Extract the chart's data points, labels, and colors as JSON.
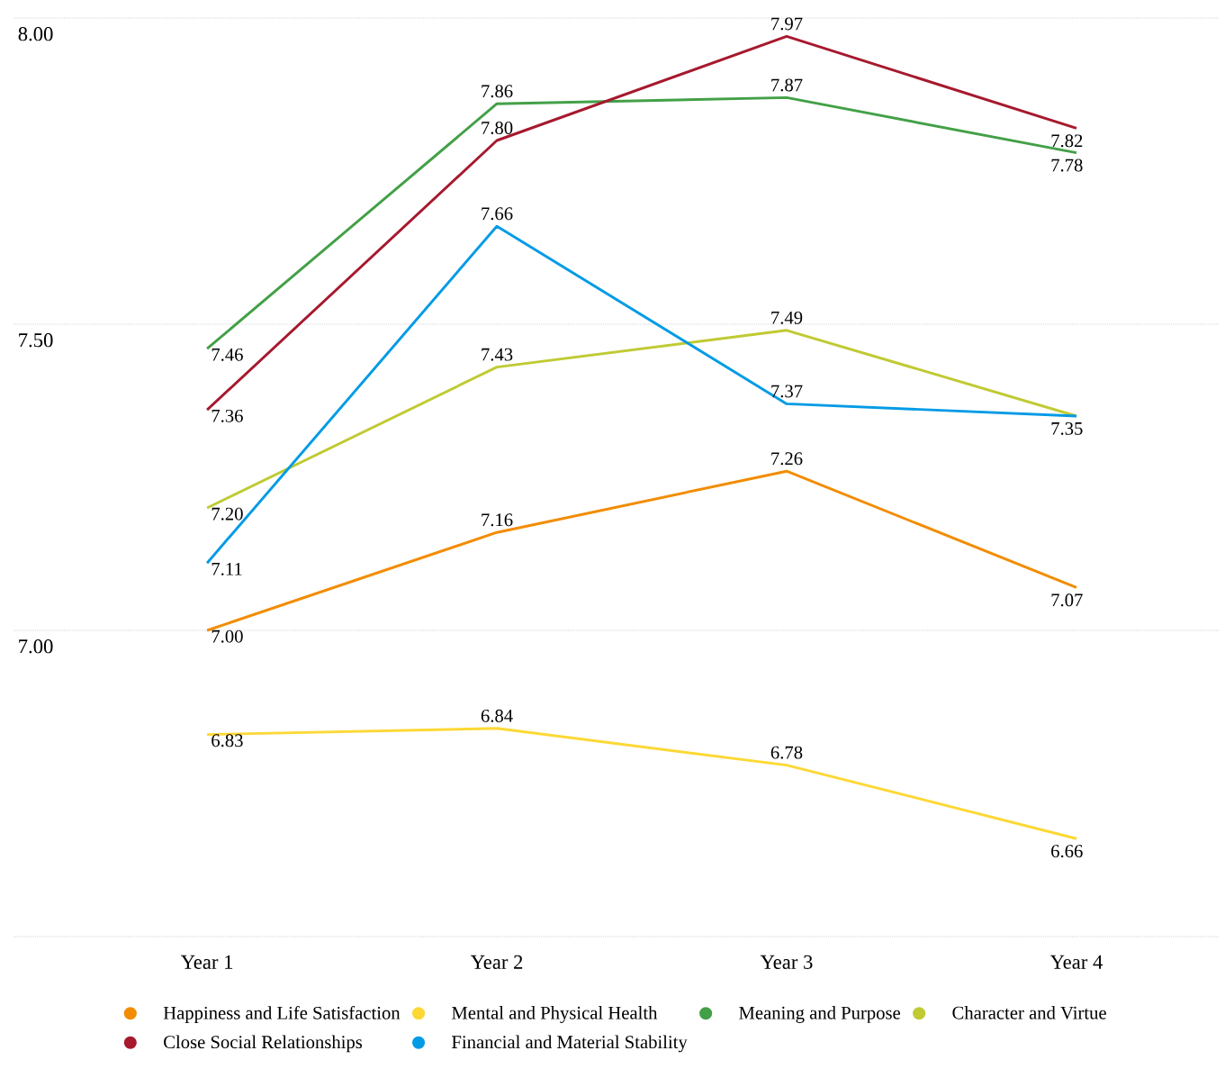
{
  "chart_data": {
    "type": "line",
    "categories": [
      "Year 1",
      "Year 2",
      "Year 3",
      "Year 4"
    ],
    "series": [
      {
        "name": "Happiness and Life Satisfaction",
        "color": "#f28c00",
        "values": [
          7.0,
          7.16,
          7.26,
          7.07
        ],
        "value_labels": [
          "7.00",
          "7.16",
          "7.26",
          "7.07"
        ]
      },
      {
        "name": "Mental and Physical Health",
        "color": "#fdd835",
        "values": [
          6.83,
          6.84,
          6.78,
          6.66
        ],
        "value_labels": [
          "6.83",
          "6.84",
          "6.78",
          "6.66"
        ]
      },
      {
        "name": "Meaning and Purpose",
        "color": "#43a047",
        "values": [
          7.46,
          7.86,
          7.87,
          7.78
        ],
        "value_labels": [
          "7.46",
          "7.86",
          "7.87",
          "7.78"
        ]
      },
      {
        "name": "Character and Virtue",
        "color": "#c0ca33",
        "values": [
          7.2,
          7.43,
          7.49,
          7.35
        ],
        "value_labels": [
          "7.20",
          "7.43",
          "7.49",
          "7.35"
        ]
      },
      {
        "name": "Close Social Relationships",
        "color": "#a6192e",
        "values": [
          7.36,
          7.8,
          7.97,
          7.82
        ],
        "value_labels": [
          "7.36",
          "7.80",
          "7.97",
          "7.82"
        ]
      },
      {
        "name": "Financial and Material Stability",
        "color": "#039be5",
        "values": [
          7.11,
          7.66,
          7.37,
          7.35
        ],
        "value_labels": [
          "7.11",
          "7.66",
          "7.37",
          null
        ]
      }
    ],
    "ylim": [
      6.5,
      8.0
    ],
    "yticks": [
      {
        "value": 6.5,
        "label": null
      },
      {
        "value": 7.0,
        "label": "7.00"
      },
      {
        "value": 7.5,
        "label": "7.50"
      },
      {
        "value": 8.0,
        "label": "8.00"
      }
    ],
    "grid": "y",
    "legend": "bottom",
    "marker": "none",
    "line_style": "solid"
  }
}
